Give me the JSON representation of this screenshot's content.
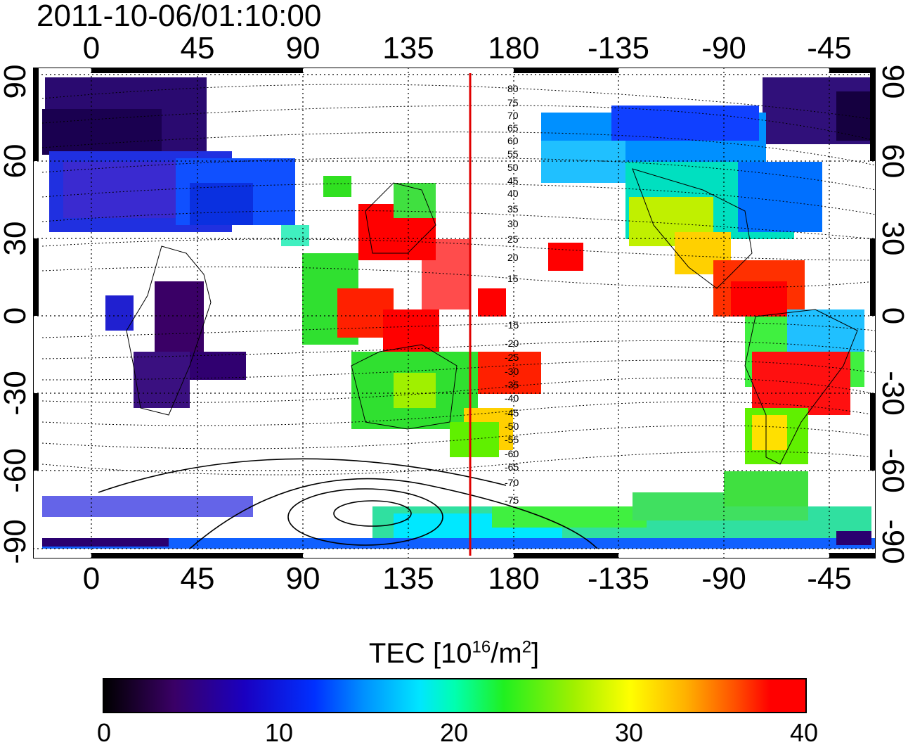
{
  "title": "2011-10-06/01:10:00",
  "top_axis_ticks": [
    "0",
    "45",
    "90",
    "135",
    "180",
    "-135",
    "-90",
    "-45"
  ],
  "bottom_axis_ticks": [
    "0",
    "45",
    "90",
    "135",
    "180",
    "-135",
    "-90",
    "-45"
  ],
  "left_axis_ticks": [
    "90",
    "60",
    "30",
    "0",
    "-30",
    "-60",
    "-90"
  ],
  "right_axis_ticks": [
    "90",
    "60",
    "30",
    "0",
    "-30",
    "-60",
    "-90"
  ],
  "contour_labels": [
    "80",
    "75",
    "70",
    "65",
    "60",
    "55",
    "50",
    "45",
    "40",
    "35",
    "30",
    "25",
    "20",
    "15",
    "-15",
    "-20",
    "-25",
    "-30",
    "-35",
    "-40",
    "-45",
    "-50",
    "-55",
    "-60",
    "-65",
    "-70",
    "-75"
  ],
  "colorbar": {
    "title_text": "TEC  [10",
    "title_sup1": "16",
    "title_mid": "/m",
    "title_sup2": "2",
    "title_end": "]",
    "ticks": [
      "0",
      "10",
      "20",
      "30",
      "40"
    ],
    "min": 0,
    "max": 40
  },
  "colors": {
    "meridian_line": "#e00000",
    "high_tec": "#ff0000",
    "low_tec": "#2a0080"
  }
}
